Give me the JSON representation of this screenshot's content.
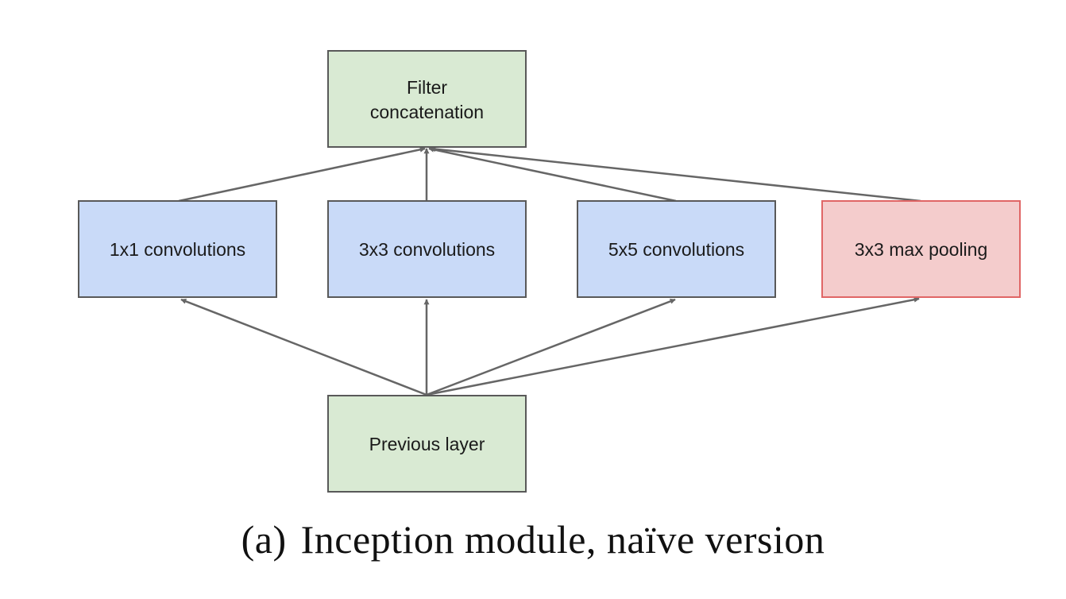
{
  "caption": {
    "tag": "(a)",
    "text": "Inception module, naïve version"
  },
  "colors": {
    "concat_fill": "#d9ead3",
    "conv_fill": "#c9daf8",
    "pool_fill": "#f4cccc",
    "pool_stroke": "#e06666",
    "box_stroke": "#595959",
    "arrow": "#666666"
  },
  "nodes": {
    "filter_concat": {
      "line1": "Filter",
      "line2": "concatenation"
    },
    "conv1x1": {
      "label": "1x1 convolutions"
    },
    "conv3x3": {
      "label": "3x3 convolutions"
    },
    "conv5x5": {
      "label": "5x5 convolutions"
    },
    "maxpool3x3": {
      "label": "3x3 max pooling"
    },
    "previous_layer": {
      "label": "Previous layer"
    }
  }
}
